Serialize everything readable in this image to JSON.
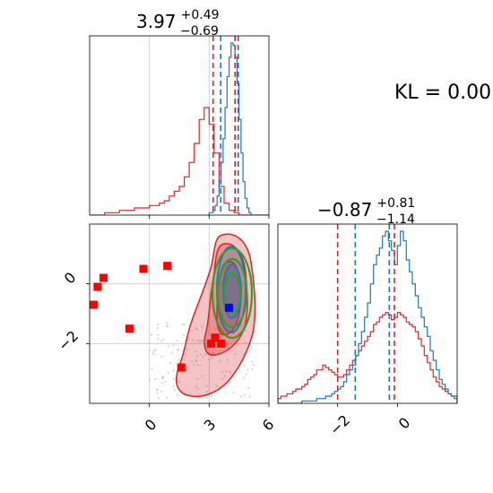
{
  "chart_data": {
    "type": "corner",
    "parameters": 2,
    "kl_label": "KL = 0.00",
    "param1": {
      "title": {
        "main": "3.97",
        "sup": "+0.49",
        "sub": "−0.69"
      },
      "range": [
        -3,
        6
      ],
      "ticks": [
        "0",
        "3",
        "6"
      ],
      "tick_values": [
        0,
        3,
        6
      ],
      "blue_quantiles": [
        3.58,
        4.46
      ],
      "red_quantiles": [
        3.2,
        4.3
      ],
      "blue_hist": {
        "edges_start": 3.0,
        "bin_width": 0.1,
        "counts": [
          1,
          1,
          2,
          4,
          8,
          14,
          22,
          32,
          45,
          58,
          66,
          72,
          71,
          66,
          55,
          40,
          26,
          14,
          7,
          3,
          1
        ]
      },
      "red_hist": {
        "edges_start": -3.0,
        "bin_width": 0.25,
        "counts": [
          0,
          0,
          0,
          1,
          1,
          1,
          2,
          2,
          2,
          3,
          3,
          3,
          4,
          4,
          5,
          6,
          8,
          10,
          12,
          16,
          22,
          30,
          40,
          45,
          38,
          26,
          12,
          5,
          2,
          1,
          0,
          0,
          0,
          0,
          0,
          0
        ]
      }
    },
    "param2": {
      "title": {
        "main": "−0.87",
        "sup": "+0.81",
        "sub": "−1.14"
      },
      "range": [
        -4,
        2
      ],
      "ticks": [
        "−2",
        "0"
      ],
      "tick_values": [
        -2,
        0
      ],
      "blue_quantiles": [
        -1.41,
        -0.27
      ],
      "red_quantiles": [
        -2.0,
        -0.1
      ],
      "blue_hist": {
        "edges_start": -4.0,
        "bin_width": 0.1,
        "counts": [
          0,
          0,
          0,
          0,
          0,
          0,
          0,
          0,
          1,
          1,
          1,
          1,
          1,
          2,
          2,
          2,
          3,
          3,
          4,
          5,
          6,
          7,
          9,
          12,
          14,
          16,
          20,
          25,
          30,
          36,
          42,
          50,
          58,
          62,
          65,
          70,
          72,
          68,
          64,
          58,
          66,
          72,
          68,
          60,
          55,
          50,
          45,
          40,
          36,
          32,
          28,
          22,
          18,
          14,
          10,
          8,
          6,
          4,
          3,
          2
        ]
      },
      "red_hist": {
        "edges_start": -4.0,
        "bin_width": 0.1,
        "counts": [
          2,
          3,
          3,
          4,
          4,
          5,
          6,
          6,
          7,
          8,
          10,
          11,
          12,
          14,
          14,
          16,
          15,
          14,
          13,
          12,
          11,
          11,
          12,
          14,
          16,
          18,
          20,
          22,
          24,
          26,
          28,
          30,
          33,
          34,
          36,
          37,
          38,
          37,
          35,
          36,
          38,
          37,
          36,
          34,
          33,
          32,
          30,
          27,
          24,
          20,
          17,
          14,
          11,
          9,
          7,
          6,
          5,
          4,
          3,
          3
        ]
      }
    },
    "joint": {
      "x_ticks": [
        "0",
        "3",
        "6"
      ],
      "x_tick_values": [
        0,
        3,
        6
      ],
      "y_ticks": [
        "0",
        "−2"
      ],
      "y_tick_values": [
        0,
        -2
      ],
      "xlim": [
        -3,
        6
      ],
      "ylim": [
        -4,
        2
      ],
      "red_markers": [
        {
          "x": -2.3,
          "y": 0.2
        },
        {
          "x": -2.6,
          "y": -0.1
        },
        {
          "x": -2.8,
          "y": -0.7
        },
        {
          "x": -0.3,
          "y": 0.5
        },
        {
          "x": 0.9,
          "y": 0.6
        },
        {
          "x": -1.0,
          "y": -1.5
        },
        {
          "x": 1.6,
          "y": -2.8
        },
        {
          "x": 3.1,
          "y": -2.0
        },
        {
          "x": 3.6,
          "y": -2.0
        },
        {
          "x": 3.3,
          "y": -1.8
        }
      ],
      "blue_marker": {
        "x": 4.0,
        "y": -0.8
      }
    },
    "colors": {
      "blue": "#1f77b4",
      "red": "#d62728",
      "green": "#2ca02c",
      "marker_blue": "#0000ff",
      "marker_red": "#ff0000",
      "grid": "#c8c8c8"
    }
  }
}
